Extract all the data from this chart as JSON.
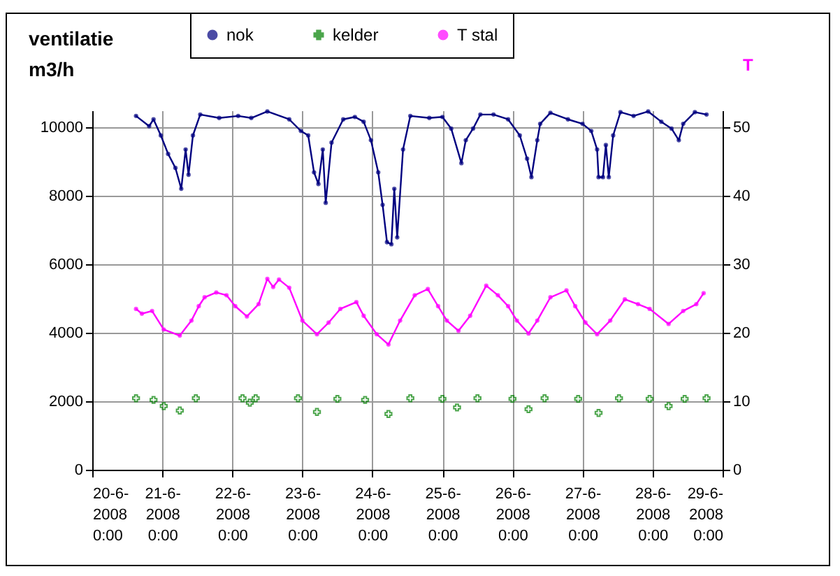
{
  "chart_data": {
    "type": "line",
    "ylabel": "ventilatie m3/h",
    "y2label": "T",
    "xlim": [
      "2008-06-20T00:00",
      "2008-06-29T00:00"
    ],
    "xticks": [
      {
        "value": "2008-06-20T00:00",
        "label": "20-6-2008 0:00"
      },
      {
        "value": "2008-06-21T00:00",
        "label": "21-6-2008 0:00"
      },
      {
        "value": "2008-06-22T00:00",
        "label": "22-6-2008 0:00"
      },
      {
        "value": "2008-06-23T00:00",
        "label": "23-6-2008 0:00"
      },
      {
        "value": "2008-06-24T00:00",
        "label": "24-6-2008 0:00"
      },
      {
        "value": "2008-06-25T00:00",
        "label": "25-6-2008 0:00"
      },
      {
        "value": "2008-06-26T00:00",
        "label": "26-6-2008 0:00"
      },
      {
        "value": "2008-06-27T00:00",
        "label": "27-6-2008 0:00"
      },
      {
        "value": "2008-06-28T00:00",
        "label": "28-6-2008 0:00"
      },
      {
        "value": "2008-06-29T00:00",
        "label": "29-6-2008 0:00"
      }
    ],
    "ylim": [
      0,
      10500
    ],
    "yticks": [
      0,
      2000,
      4000,
      6000,
      8000,
      10000
    ],
    "y2lim": [
      0,
      52.5
    ],
    "y2ticks": [
      0,
      10,
      20,
      30,
      40,
      50
    ],
    "grid": true,
    "legend": "top",
    "series": [
      {
        "name": "nok",
        "marker": "circle",
        "color": "#000080",
        "x": [
          "2008-06-20T15:00",
          "2008-06-20T19:30",
          "2008-06-20T21:00",
          "2008-06-20T23:30",
          "2008-06-21T02:00",
          "2008-06-21T04:30",
          "2008-06-21T06:30",
          "2008-06-21T08:00",
          "2008-06-21T09:00",
          "2008-06-21T10:30",
          "2008-06-21T13:00",
          "2008-06-21T19:30",
          "2008-06-22T02:00",
          "2008-06-22T06:30",
          "2008-06-22T12:00",
          "2008-06-22T19:30",
          "2008-06-22T23:30",
          "2008-06-23T02:00",
          "2008-06-23T04:00",
          "2008-06-23T05:30",
          "2008-06-23T07:00",
          "2008-06-23T08:00",
          "2008-06-23T10:00",
          "2008-06-23T14:00",
          "2008-06-23T18:00",
          "2008-06-23T21:00",
          "2008-06-23T23:30",
          "2008-06-24T02:00",
          "2008-06-24T03:30",
          "2008-06-24T05:00",
          "2008-06-24T06:30",
          "2008-06-24T07:30",
          "2008-06-24T08:30",
          "2008-06-24T10:30",
          "2008-06-24T13:00",
          "2008-06-24T19:30",
          "2008-06-25T00:00",
          "2008-06-25T03:00",
          "2008-06-25T06:30",
          "2008-06-25T08:00",
          "2008-06-25T10:30",
          "2008-06-25T13:00",
          "2008-06-25T17:30",
          "2008-06-25T22:30",
          "2008-06-26T02:30",
          "2008-06-26T05:00",
          "2008-06-26T06:30",
          "2008-06-26T08:30",
          "2008-06-26T09:30",
          "2008-06-26T13:00",
          "2008-06-26T19:00",
          "2008-06-27T00:00",
          "2008-06-27T03:00",
          "2008-06-27T05:00",
          "2008-06-27T05:30",
          "2008-06-27T07:00",
          "2008-06-27T08:00",
          "2008-06-27T09:00",
          "2008-06-27T10:30",
          "2008-06-27T13:00",
          "2008-06-27T17:30",
          "2008-06-27T22:30",
          "2008-06-28T03:00",
          "2008-06-28T06:30",
          "2008-06-28T09:00",
          "2008-06-28T10:30",
          "2008-06-28T14:30",
          "2008-06-28T18:30"
        ],
        "values": [
          10340,
          10040,
          10240,
          9770,
          9230,
          8820,
          8210,
          9360,
          8620,
          9770,
          10380,
          10280,
          10340,
          10280,
          10470,
          10240,
          9900,
          9770,
          8690,
          8350,
          9360,
          7800,
          9560,
          10240,
          10310,
          10170,
          9630,
          8690,
          7740,
          6650,
          6590,
          8210,
          6790,
          9360,
          10340,
          10280,
          10310,
          9970,
          8960,
          9630,
          9970,
          10380,
          10380,
          10240,
          9770,
          9090,
          8550,
          9630,
          10110,
          10430,
          10240,
          10110,
          9900,
          9360,
          8550,
          8550,
          9490,
          8550,
          9770,
          10450,
          10340,
          10470,
          10170,
          9970,
          9630,
          10110,
          10450,
          10380
        ]
      },
      {
        "name": "kelder",
        "type": "scatter",
        "marker": "cross",
        "color": "#008000",
        "x": [
          "2008-06-20T15:00",
          "2008-06-20T21:00",
          "2008-06-21T00:30",
          "2008-06-21T06:00",
          "2008-06-21T11:30",
          "2008-06-22T03:30",
          "2008-06-22T06:00",
          "2008-06-22T08:00",
          "2008-06-22T22:30",
          "2008-06-23T05:00",
          "2008-06-23T12:00",
          "2008-06-23T21:30",
          "2008-06-24T05:30",
          "2008-06-24T13:00",
          "2008-06-25T00:00",
          "2008-06-25T05:00",
          "2008-06-25T12:00",
          "2008-06-26T00:00",
          "2008-06-26T05:30",
          "2008-06-26T11:00",
          "2008-06-26T22:30",
          "2008-06-27T05:30",
          "2008-06-27T12:30",
          "2008-06-27T23:00",
          "2008-06-28T05:30",
          "2008-06-28T11:00",
          "2008-06-28T18:30"
        ],
        "values": [
          2090,
          2040,
          1860,
          1730,
          2090,
          2090,
          1960,
          2090,
          2090,
          1690,
          2070,
          2040,
          1630,
          2090,
          2070,
          1820,
          2090,
          2070,
          1770,
          2090,
          2070,
          1660,
          2090,
          2070,
          1860,
          2070,
          2090
        ]
      },
      {
        "name": "T stal",
        "marker": "circle",
        "axis": "y2",
        "color": "#ff00ff",
        "x": [
          "2008-06-20T15:00",
          "2008-06-20T17:00",
          "2008-06-20T20:30",
          "2008-06-21T00:30",
          "2008-06-21T06:00",
          "2008-06-21T10:00",
          "2008-06-21T12:30",
          "2008-06-21T14:30",
          "2008-06-21T18:30",
          "2008-06-21T22:00",
          "2008-06-22T01:00",
          "2008-06-22T05:00",
          "2008-06-22T09:00",
          "2008-06-22T12:00",
          "2008-06-22T14:00",
          "2008-06-22T16:00",
          "2008-06-22T19:30",
          "2008-06-23T00:00",
          "2008-06-23T05:00",
          "2008-06-23T09:00",
          "2008-06-23T13:00",
          "2008-06-23T18:30",
          "2008-06-23T21:00",
          "2008-06-24T01:30",
          "2008-06-24T05:30",
          "2008-06-24T09:30",
          "2008-06-24T14:30",
          "2008-06-24T19:00",
          "2008-06-24T22:30",
          "2008-06-25T01:30",
          "2008-06-25T05:30",
          "2008-06-25T09:30",
          "2008-06-25T15:00",
          "2008-06-25T19:00",
          "2008-06-25T22:30",
          "2008-06-26T01:30",
          "2008-06-26T05:30",
          "2008-06-26T08:30",
          "2008-06-26T13:00",
          "2008-06-26T18:30",
          "2008-06-26T21:30",
          "2008-06-27T01:00",
          "2008-06-27T05:00",
          "2008-06-27T09:30",
          "2008-06-27T14:30",
          "2008-06-27T19:00",
          "2008-06-27T23:00",
          "2008-06-28T05:30",
          "2008-06-28T10:30",
          "2008-06-28T15:00",
          "2008-06-28T17:30"
        ],
        "values": [
          23.5,
          22.8,
          23.2,
          20.5,
          19.6,
          21.8,
          23.9,
          25.2,
          25.9,
          25.5,
          23.9,
          22.4,
          24.2,
          27.9,
          26.7,
          27.8,
          26.6,
          21.8,
          19.8,
          21.5,
          23.5,
          24.5,
          22.5,
          19.8,
          18.3,
          21.8,
          25.5,
          26.4,
          23.9,
          21.8,
          20.3,
          22.5,
          26.9,
          25.5,
          23.9,
          21.8,
          19.9,
          21.8,
          25.2,
          26.2,
          23.9,
          21.5,
          19.8,
          21.8,
          24.9,
          24.2,
          23.5,
          21.3,
          23.2,
          24.2,
          25.8
        ]
      }
    ]
  }
}
